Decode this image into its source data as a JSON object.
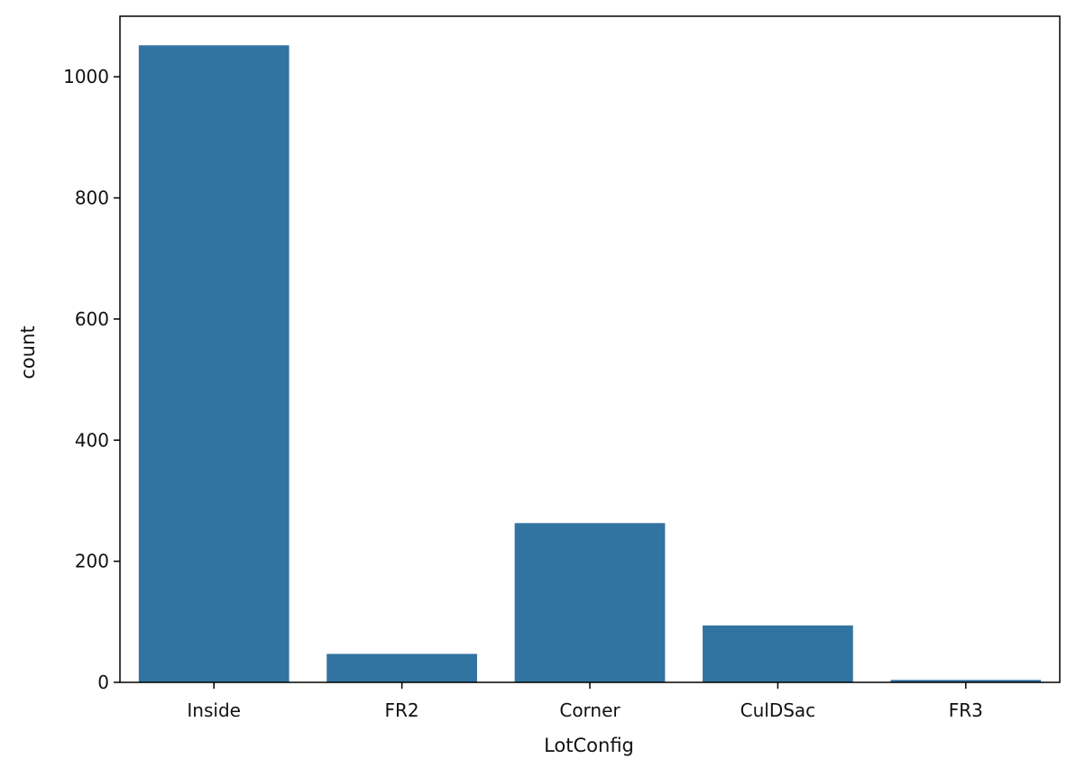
{
  "chart_data": {
    "type": "bar",
    "title": "",
    "xlabel": "LotConfig",
    "ylabel": "count",
    "categories": [
      "Inside",
      "FR2",
      "Corner",
      "CulDSac",
      "FR3"
    ],
    "values": [
      1052,
      47,
      263,
      94,
      4
    ],
    "ylim": [
      0,
      1100
    ],
    "yticks": [
      0,
      200,
      400,
      600,
      800,
      1000
    ],
    "grid": false,
    "legend": "none",
    "bar_color": "#3274a1"
  }
}
